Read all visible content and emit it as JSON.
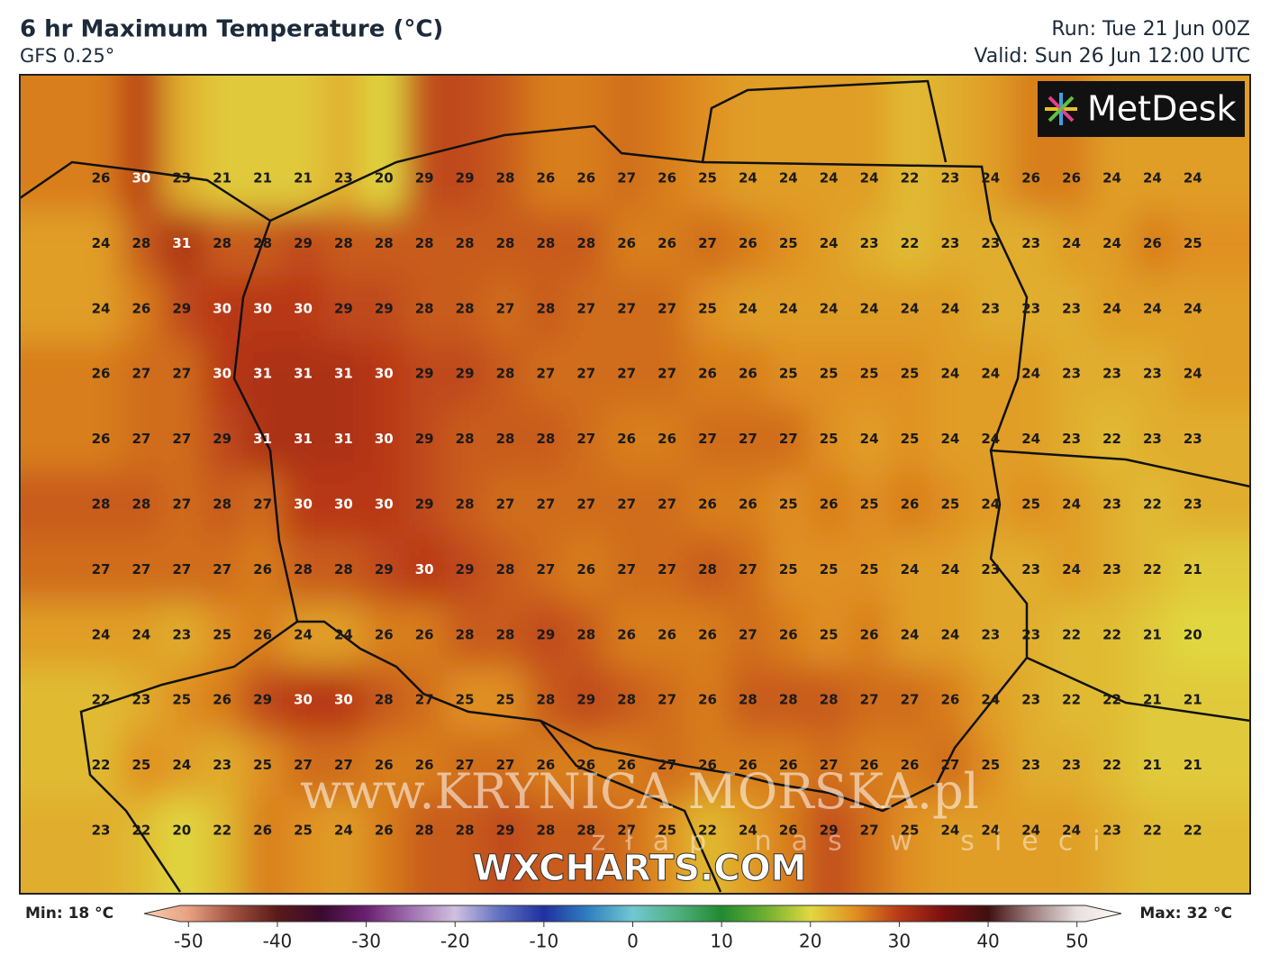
{
  "header": {
    "title": "6 hr Maximum Temperature (°C)",
    "subtitle": "GFS 0.25°",
    "run": "Run: Tue 21 Jun 00Z",
    "valid": "Valid: Sun 26 Jun 12:00 UTC"
  },
  "logo": "MetDesk",
  "watermarks": {
    "site": "WXCHARTS.COM",
    "url": "www.KRYNICA MORSKA.pl",
    "slogan": "złap nas w sieci"
  },
  "map": {
    "rows": [
      [
        26,
        30,
        23,
        21,
        21,
        21,
        23,
        20,
        29,
        29,
        28,
        26,
        26,
        27,
        26,
        25,
        24,
        24,
        24,
        24,
        22,
        23,
        24,
        26,
        26,
        24,
        24,
        24
      ],
      [
        24,
        28,
        31,
        28,
        28,
        29,
        28,
        28,
        28,
        28,
        28,
        28,
        28,
        26,
        26,
        27,
        26,
        25,
        24,
        23,
        22,
        23,
        23,
        23,
        24,
        24,
        26,
        25
      ],
      [
        24,
        26,
        29,
        30,
        30,
        30,
        29,
        29,
        28,
        28,
        27,
        28,
        27,
        27,
        27,
        25,
        24,
        24,
        24,
        24,
        24,
        24,
        23,
        23,
        23,
        24,
        24,
        24
      ],
      [
        26,
        27,
        27,
        30,
        31,
        31,
        31,
        30,
        29,
        29,
        28,
        27,
        27,
        27,
        27,
        26,
        26,
        25,
        25,
        25,
        25,
        24,
        24,
        24,
        23,
        23,
        23,
        24
      ],
      [
        26,
        27,
        27,
        29,
        31,
        31,
        31,
        30,
        29,
        28,
        28,
        28,
        27,
        26,
        26,
        27,
        27,
        27,
        25,
        24,
        25,
        24,
        24,
        24,
        23,
        22,
        23,
        23
      ],
      [
        28,
        28,
        27,
        28,
        27,
        30,
        30,
        30,
        29,
        28,
        27,
        27,
        27,
        27,
        27,
        26,
        26,
        25,
        26,
        25,
        26,
        25,
        24,
        25,
        24,
        23,
        22,
        23
      ],
      [
        27,
        27,
        27,
        27,
        26,
        28,
        28,
        29,
        30,
        29,
        28,
        27,
        26,
        27,
        27,
        28,
        27,
        25,
        25,
        25,
        24,
        24,
        23,
        23,
        24,
        23,
        22,
        21
      ],
      [
        24,
        24,
        23,
        25,
        26,
        24,
        24,
        26,
        26,
        28,
        28,
        29,
        28,
        26,
        26,
        26,
        27,
        26,
        25,
        26,
        24,
        24,
        23,
        23,
        22,
        22,
        21,
        20
      ],
      [
        22,
        23,
        25,
        26,
        29,
        30,
        30,
        28,
        27,
        25,
        25,
        28,
        29,
        28,
        27,
        26,
        28,
        28,
        28,
        27,
        27,
        26,
        24,
        23,
        22,
        22,
        21,
        21
      ],
      [
        22,
        25,
        24,
        23,
        25,
        27,
        27,
        26,
        26,
        27,
        27,
        26,
        26,
        26,
        27,
        26,
        26,
        26,
        27,
        26,
        26,
        27,
        25,
        23,
        23,
        22,
        21,
        21
      ],
      [
        23,
        22,
        20,
        22,
        26,
        25,
        24,
        26,
        28,
        28,
        29,
        28,
        28,
        27,
        25,
        22,
        24,
        26,
        29,
        27,
        25,
        24,
        24,
        24,
        24,
        23,
        22,
        22
      ]
    ]
  },
  "colorbar": {
    "min_label": "Min: 18 °C",
    "max_label": "Max: 32 °C",
    "lim": [
      -55,
      55
    ],
    "ticks": [
      -50,
      -40,
      -30,
      -20,
      -10,
      0,
      10,
      20,
      30,
      40,
      50
    ],
    "colors": [
      "#f8d0b0",
      "#e8a080",
      "#a05040",
      "#5a1a18",
      "#3a0a30",
      "#6a2070",
      "#a070b0",
      "#d0c0e0",
      "#6070c0",
      "#2030a0",
      "#3080c0",
      "#70c8d0",
      "#50b080",
      "#208a30",
      "#70b030",
      "#e0d840",
      "#e09020",
      "#b83818",
      "#7a1010",
      "#401010",
      "#a08080",
      "#e8e0e0",
      "#fff8f0"
    ]
  }
}
